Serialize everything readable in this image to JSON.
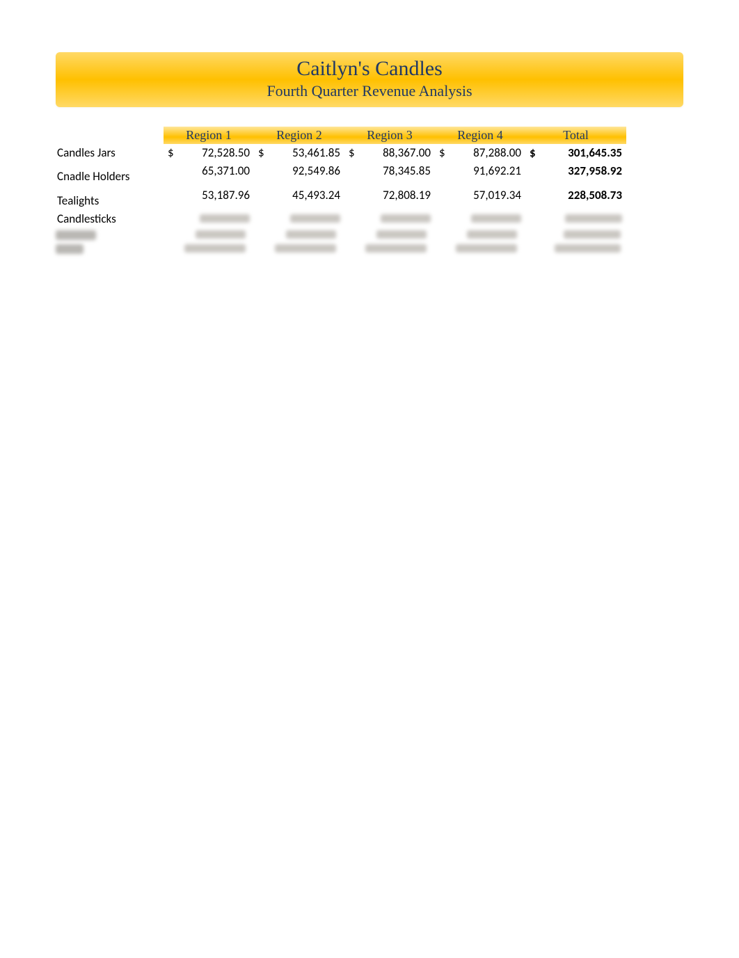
{
  "header": {
    "title": "Caitlyn's Candles",
    "subtitle": "Fourth Quarter Revenue Analysis"
  },
  "columns": [
    "Region 1",
    "Region 2",
    "Region 3",
    "Region 4",
    "Total"
  ],
  "rows": [
    {
      "label": "Candles Jars",
      "cells": [
        {
          "sym": "$",
          "val": "72,528.50"
        },
        {
          "sym": "$",
          "val": "53,461.85"
        },
        {
          "sym": "$",
          "val": "88,367.00"
        },
        {
          "sym": "$",
          "val": "87,288.00"
        }
      ],
      "total": {
        "sym": "$",
        "val": "301,645.35"
      }
    },
    {
      "label": "Cnadle Holders",
      "cells": [
        {
          "sym": "",
          "val": "65,371.00"
        },
        {
          "sym": "",
          "val": "92,549.86"
        },
        {
          "sym": "",
          "val": "78,345.85"
        },
        {
          "sym": "",
          "val": "91,692.21"
        }
      ],
      "total": {
        "sym": "",
        "val": "327,958.92"
      }
    },
    {
      "label": "Tealights",
      "cells": [
        {
          "sym": "",
          "val": "53,187.96"
        },
        {
          "sym": "",
          "val": "45,493.24"
        },
        {
          "sym": "",
          "val": "72,808.19"
        },
        {
          "sym": "",
          "val": "57,019.34"
        }
      ],
      "total": {
        "sym": "",
        "val": "228,508.73"
      }
    },
    {
      "label": "Candlesticks",
      "cells": [
        {
          "sym": "",
          "val": ""
        },
        {
          "sym": "",
          "val": ""
        },
        {
          "sym": "",
          "val": ""
        },
        {
          "sym": "",
          "val": ""
        }
      ],
      "total": {
        "sym": "",
        "val": ""
      }
    }
  ],
  "styling": {
    "header_gradient": [
      "#ffd966",
      "#ffc000",
      "#ffd966"
    ],
    "column_header_gradient": [
      "#ffe699",
      "#ffc000",
      "#ffd966"
    ],
    "title_color": "#203864",
    "title_font": "Times New Roman",
    "title_fontsize": 30,
    "subtitle_fontsize": 22,
    "body_font": "Calibri",
    "body_fontsize": 17,
    "total_bold": true,
    "background_color": "#ffffff",
    "blur_bar_color": "#c9c6c1"
  }
}
